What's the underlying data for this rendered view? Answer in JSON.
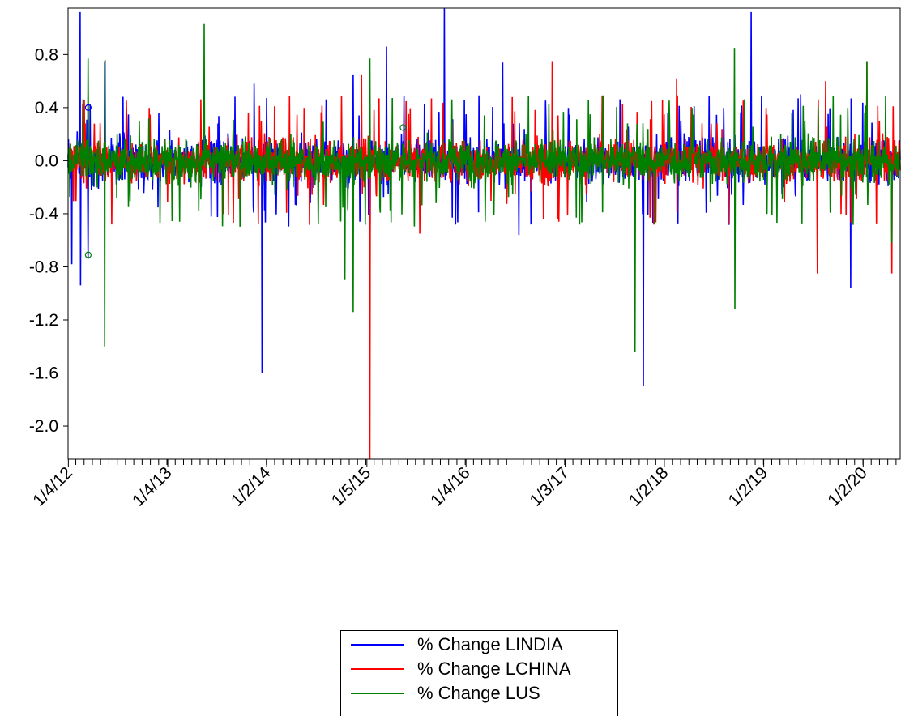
{
  "chart_data": {
    "type": "line",
    "title": "",
    "xlabel": "",
    "ylabel": "",
    "ylim": [
      -2.25,
      1.15
    ],
    "y_ticks": [
      "0.8",
      "0.4",
      "0.0",
      "-0.4",
      "-0.8",
      "-1.2",
      "-1.6",
      "-2.0"
    ],
    "x_tick_labels": [
      "1/4/12",
      "1/4/13",
      "1/2/14",
      "1/5/15",
      "1/4/16",
      "1/3/17",
      "1/2/18",
      "1/2/19",
      "1/2/20"
    ],
    "x_range": [
      "1/3/12",
      "5/2020"
    ],
    "grid": false,
    "legend_position": "bottom-center",
    "series": [
      {
        "name": "% Change LINDIA",
        "color": "#0000ff",
        "typical_band": [
          -0.35,
          0.35
        ],
        "spikes": [
          {
            "x": "2/2012",
            "y": 1.12
          },
          {
            "x": "2/2012",
            "y": -0.94
          },
          {
            "x": "1/2012",
            "y": -0.78
          },
          {
            "x": "3/2012",
            "y": -0.74
          },
          {
            "x": "5/2012",
            "y": 0.75
          },
          {
            "x": "11/2013",
            "y": 0.58
          },
          {
            "x": "12/2013",
            "y": -1.6
          },
          {
            "x": "11/2014",
            "y": 0.65
          },
          {
            "x": "1/2015",
            "y": -0.87
          },
          {
            "x": "3/2015",
            "y": 0.86
          },
          {
            "x": "10/2015",
            "y": 1.15
          },
          {
            "x": "5/2016",
            "y": 0.74
          },
          {
            "x": "7/2016",
            "y": -0.56
          },
          {
            "x": "10/2017",
            "y": -1.7
          },
          {
            "x": "11/2018",
            "y": 1.12
          },
          {
            "x": "5/2019",
            "y": 0.5
          },
          {
            "x": "11/2019",
            "y": -0.96
          }
        ]
      },
      {
        "name": "% Change LCHINA",
        "color": "#ff0000",
        "typical_band": [
          -0.35,
          0.35
        ],
        "spikes": [
          {
            "x": "12/2014",
            "y": 0.65
          },
          {
            "x": "1/2015",
            "y": -2.25
          },
          {
            "x": "7/2015",
            "y": -0.55
          },
          {
            "x": "11/2016",
            "y": 0.75
          },
          {
            "x": "11/2017",
            "y": 0.45
          },
          {
            "x": "2/2018",
            "y": 0.62
          },
          {
            "x": "7/2019",
            "y": -0.85
          },
          {
            "x": "8/2019",
            "y": 0.6
          },
          {
            "x": "1/2020",
            "y": 0.75
          },
          {
            "x": "4/2020",
            "y": -0.85
          }
        ]
      },
      {
        "name": "% Change LUS",
        "color": "#008000",
        "typical_band": [
          -0.35,
          0.35
        ],
        "spikes": [
          {
            "x": "3/2012",
            "y": 0.77
          },
          {
            "x": "5/2012",
            "y": -1.4
          },
          {
            "x": "5/2012",
            "y": 0.76
          },
          {
            "x": "5/2013",
            "y": 1.03
          },
          {
            "x": "10/2014",
            "y": -0.9
          },
          {
            "x": "11/2014",
            "y": -1.14
          },
          {
            "x": "1/2015",
            "y": 0.77
          },
          {
            "x": "9/2017",
            "y": -1.44
          },
          {
            "x": "9/2018",
            "y": 0.85
          },
          {
            "x": "9/2018",
            "y": -1.12
          },
          {
            "x": "1/2020",
            "y": 0.75
          },
          {
            "x": "4/2020",
            "y": -0.62
          }
        ]
      }
    ],
    "markers": [
      {
        "color": "#0000ff",
        "x": "3/2012",
        "y": 0.4
      },
      {
        "color": "#008000",
        "x": "3/2012",
        "y": -0.71
      },
      {
        "color": "#008000",
        "x": "5/2015",
        "y": 0.25
      }
    ]
  }
}
